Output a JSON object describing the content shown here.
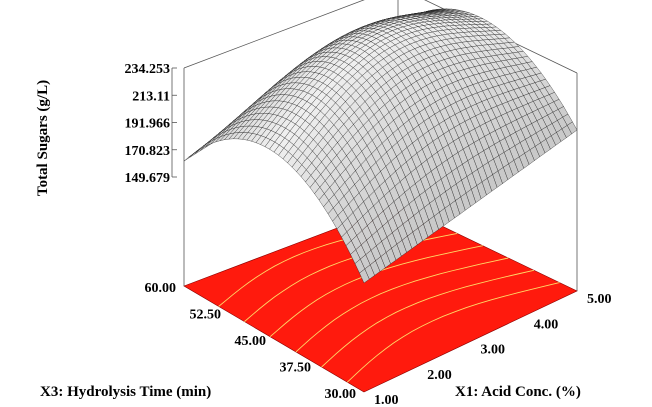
{
  "chart_data": {
    "type": "surface",
    "zlabel": "Total Sugars (g/L)",
    "xlabel": "X1: Acid Conc. (%)",
    "ylabel": "X3: Hydrolysis Time (min)",
    "z_ticks": [
      "149.679",
      "170.823",
      "191.966",
      "213.11",
      "234.253"
    ],
    "x_ticks": [
      "1.00",
      "2.00",
      "3.00",
      "4.00",
      "5.00"
    ],
    "y_ticks": [
      "30.00",
      "37.50",
      "45.00",
      "52.50",
      "60.00"
    ],
    "x_range": [
      1.0,
      5.0
    ],
    "y_range": [
      30.0,
      60.0
    ],
    "z_range": [
      149.679,
      234.253
    ],
    "surface_corners": {
      "x1_time30": 149.679,
      "x1_time60": 162.0,
      "x5_time60": 205.0,
      "x5_time30": 190.0
    },
    "surface_peak": 234.253,
    "colors": {
      "surface": "#cfcfcf",
      "mesh": "#1a1a1a",
      "floor": "#ff1a0d",
      "contour": "#ffd866"
    }
  }
}
